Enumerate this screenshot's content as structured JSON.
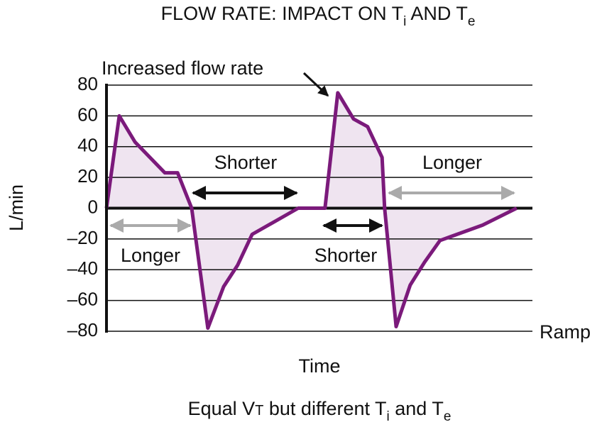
{
  "chart_data": {
    "type": "line",
    "title": [
      "FLOW RATE: IMPACT ON T",
      "i",
      " AND T",
      "e"
    ],
    "ylabel": "L/min",
    "xlabel": "Time",
    "caption": [
      "Equal V",
      "T",
      " but different T",
      "i",
      " and T",
      "e"
    ],
    "annotations": [
      "Increased flow rate",
      "Shorter",
      "Longer",
      "Longer",
      "Shorter",
      "Ramp"
    ],
    "xlim": [
      0,
      100
    ],
    "ylim": [
      -80,
      80
    ],
    "yticks": [
      {
        "value": -80,
        "label": "–80"
      },
      {
        "value": -60,
        "label": "–60"
      },
      {
        "value": -40,
        "label": "–40"
      },
      {
        "value": -20,
        "label": "–20"
      },
      0,
      20,
      40,
      60,
      80
    ],
    "grid": true,
    "series": [
      {
        "color": "#7b1a7b",
        "fill": "#efe4f0",
        "x": [
          0,
          3,
          6.7,
          13.7,
          16.7,
          20,
          23.8,
          27.5,
          30.8,
          34.2,
          45,
          51.3,
          54.3,
          58,
          61.3,
          64.7,
          65.3,
          68,
          71.3,
          74.7,
          78.3,
          88.3,
          96.3
        ],
        "values": [
          0,
          60,
          43,
          23,
          23,
          0,
          -78,
          -51,
          -37,
          -17,
          0,
          0,
          75,
          58,
          53,
          33,
          0,
          -77,
          -50,
          -35,
          -21,
          -11,
          0
        ]
      }
    ]
  }
}
